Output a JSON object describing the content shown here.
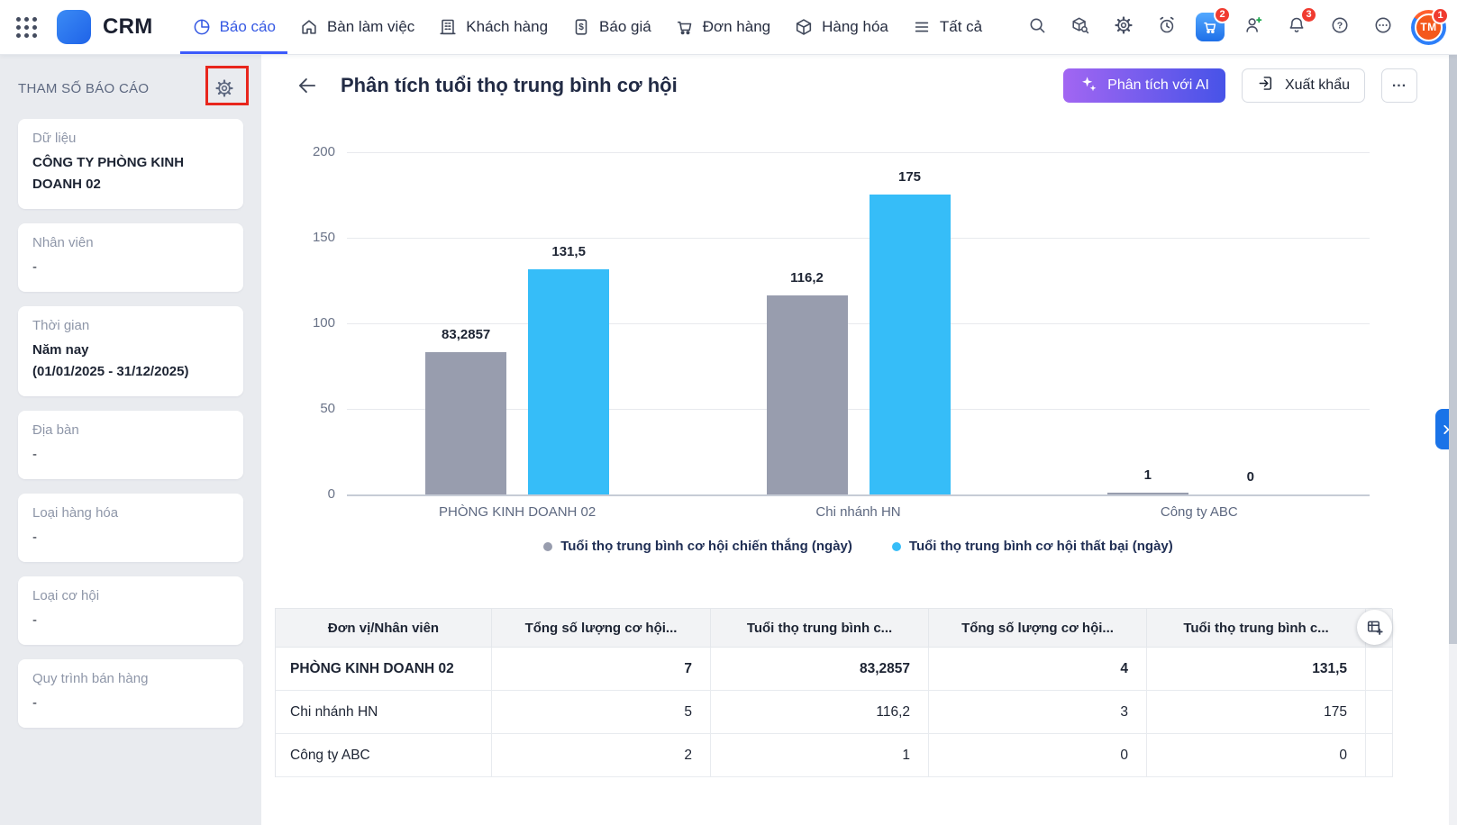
{
  "topbar": {
    "brand": "CRM",
    "nav": [
      {
        "id": "bao-cao",
        "label": "Báo cáo",
        "icon": "pie",
        "active": true
      },
      {
        "id": "ban-lam-viec",
        "label": "Bàn làm việc",
        "icon": "home",
        "active": false
      },
      {
        "id": "khach-hang",
        "label": "Khách hàng",
        "icon": "building",
        "active": false
      },
      {
        "id": "bao-gia",
        "label": "Báo giá",
        "icon": "quote",
        "active": false
      },
      {
        "id": "don-hang",
        "label": "Đơn hàng",
        "icon": "cart",
        "active": false
      },
      {
        "id": "hang-hoa",
        "label": "Hàng hóa",
        "icon": "box",
        "active": false
      },
      {
        "id": "tat-ca",
        "label": "Tất cả",
        "icon": "menu",
        "active": false
      }
    ],
    "actions": [
      {
        "id": "search",
        "icon": "search",
        "badge": ""
      },
      {
        "id": "product-lookup",
        "icon": "box-search",
        "badge": ""
      },
      {
        "id": "settings",
        "icon": "gear",
        "badge": ""
      },
      {
        "id": "reminders",
        "icon": "alarm",
        "badge": ""
      },
      {
        "id": "cart-app",
        "icon": "cart-app",
        "badge": "2"
      },
      {
        "id": "add-user",
        "icon": "person-add",
        "badge": ""
      },
      {
        "id": "notifications",
        "icon": "bell",
        "badge": "3"
      },
      {
        "id": "help",
        "icon": "question",
        "badge": ""
      },
      {
        "id": "more",
        "icon": "ellipsis",
        "badge": ""
      }
    ],
    "avatar": {
      "initials": "TM",
      "badge": "1"
    }
  },
  "sidebar": {
    "title": "THAM SỐ BÁO CÁO",
    "params": [
      {
        "label": "Dữ liệu",
        "lines": [
          "CÔNG TY PHÒNG KINH DOANH 02"
        ],
        "bold": true
      },
      {
        "label": "Nhân viên",
        "lines": [
          "-"
        ],
        "bold": false
      },
      {
        "label": "Thời gian",
        "lines": [
          "Năm nay",
          "(01/01/2025 - 31/12/2025)"
        ],
        "bold": true
      },
      {
        "label": "Địa bàn",
        "lines": [
          "-"
        ],
        "bold": false
      },
      {
        "label": "Loại hàng hóa",
        "lines": [
          "-"
        ],
        "bold": false
      },
      {
        "label": "Loại cơ hội",
        "lines": [
          "-"
        ],
        "bold": false
      },
      {
        "label": "Quy trình bán hàng",
        "lines": [
          "-"
        ],
        "bold": false
      }
    ]
  },
  "page": {
    "title": "Phân tích tuổi thọ trung bình cơ hội",
    "ai_button": "Phân tích với AI",
    "export_button": "Xuất khẩu",
    "more_button": "..."
  },
  "chart_data": {
    "type": "bar",
    "title": "Phân tích tuổi thọ trung bình cơ hội",
    "categories": [
      "PHÒNG KINH DOANH 02",
      "Chi nhánh HN",
      "Công ty ABC"
    ],
    "series": [
      {
        "name": "Tuổi thọ trung bình cơ hội chiến thắng (ngày)",
        "color": "#989dae",
        "values": [
          83.2857,
          116.2,
          1
        ],
        "labels": [
          "83,2857",
          "116,2",
          "1"
        ]
      },
      {
        "name": "Tuổi thọ trung bình cơ hội thất bại (ngày)",
        "color": "#36bdf8",
        "values": [
          131.5,
          175,
          0
        ],
        "labels": [
          "131,5",
          "175",
          "0"
        ]
      }
    ],
    "ylim": [
      0,
      200
    ],
    "yticks": [
      0,
      50,
      100,
      150,
      200
    ],
    "grid": true,
    "legend_position": "bottom"
  },
  "table": {
    "headers": [
      "Đơn vị/Nhân viên",
      "Tổng số lượng cơ hội...",
      "Tuổi thọ trung bình c...",
      "Tổng số lượng cơ hội...",
      "Tuổi thọ trung bình c..."
    ],
    "rows": [
      {
        "cells": [
          "PHÒNG KINH DOANH 02",
          "7",
          "83,2857",
          "4",
          "131,5"
        ],
        "bold": true
      },
      {
        "cells": [
          "Chi nhánh HN",
          "5",
          "116,2",
          "3",
          "175"
        ],
        "bold": false
      },
      {
        "cells": [
          "Công ty ABC",
          "2",
          "1",
          "0",
          "0"
        ],
        "bold": false
      }
    ]
  }
}
